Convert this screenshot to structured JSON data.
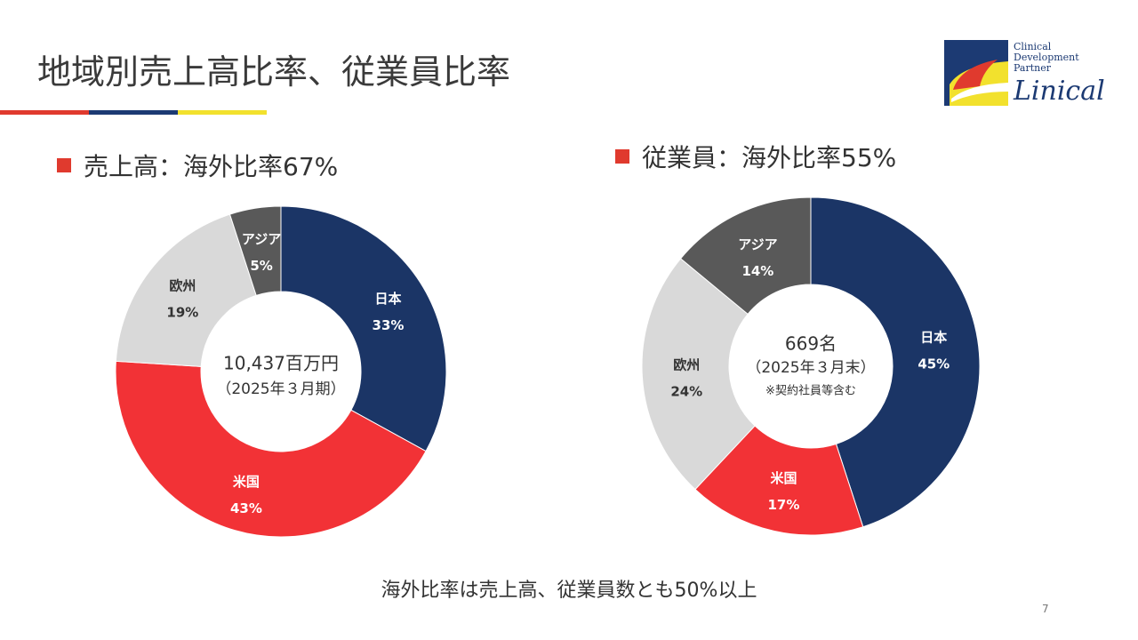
{
  "page": {
    "title": "地域別売上高比率、従業員比率",
    "footer": "海外比率は売上高、従業員数とも50%以上",
    "page_number": "7"
  },
  "logo": {
    "line1": "Clinical",
    "line2": "Development",
    "line3": "Partner",
    "name": "Linical"
  },
  "sections": {
    "left_heading": "売上高：海外比率67%",
    "right_heading": "従業員：海外比率55%"
  },
  "colors": {
    "japan": "#1b3566",
    "usa": "#f23236",
    "europe": "#d9d9d9",
    "asia": "#595959",
    "accent_red": "#e03a2e",
    "accent_blue": "#1c3a73",
    "accent_yellow": "#f2e12d"
  },
  "chart_data": [
    {
      "type": "pie",
      "title": "売上高：海外比率67%",
      "center_line1": "10,437百万円",
      "center_line2": "（2025年３月期）",
      "center_line3": "",
      "slices": [
        {
          "label": "日本",
          "value": 33,
          "display": "33%",
          "color": "#1b3566"
        },
        {
          "label": "米国",
          "value": 43,
          "display": "43%",
          "color": "#f23236"
        },
        {
          "label": "欧州",
          "value": 19,
          "display": "19%",
          "color": "#d9d9d9"
        },
        {
          "label": "アジア",
          "value": 5,
          "display": "5%",
          "color": "#595959"
        }
      ]
    },
    {
      "type": "pie",
      "title": "従業員：海外比率55%",
      "center_line1": "669名",
      "center_line2": "（2025年３月末）",
      "center_line3": "※契約社員等含む",
      "slices": [
        {
          "label": "日本",
          "value": 45,
          "display": "45%",
          "color": "#1b3566"
        },
        {
          "label": "米国",
          "value": 17,
          "display": "17%",
          "color": "#f23236"
        },
        {
          "label": "欧州",
          "value": 24,
          "display": "24%",
          "color": "#d9d9d9"
        },
        {
          "label": "アジア",
          "value": 14,
          "display": "14%",
          "color": "#595959"
        }
      ]
    }
  ]
}
